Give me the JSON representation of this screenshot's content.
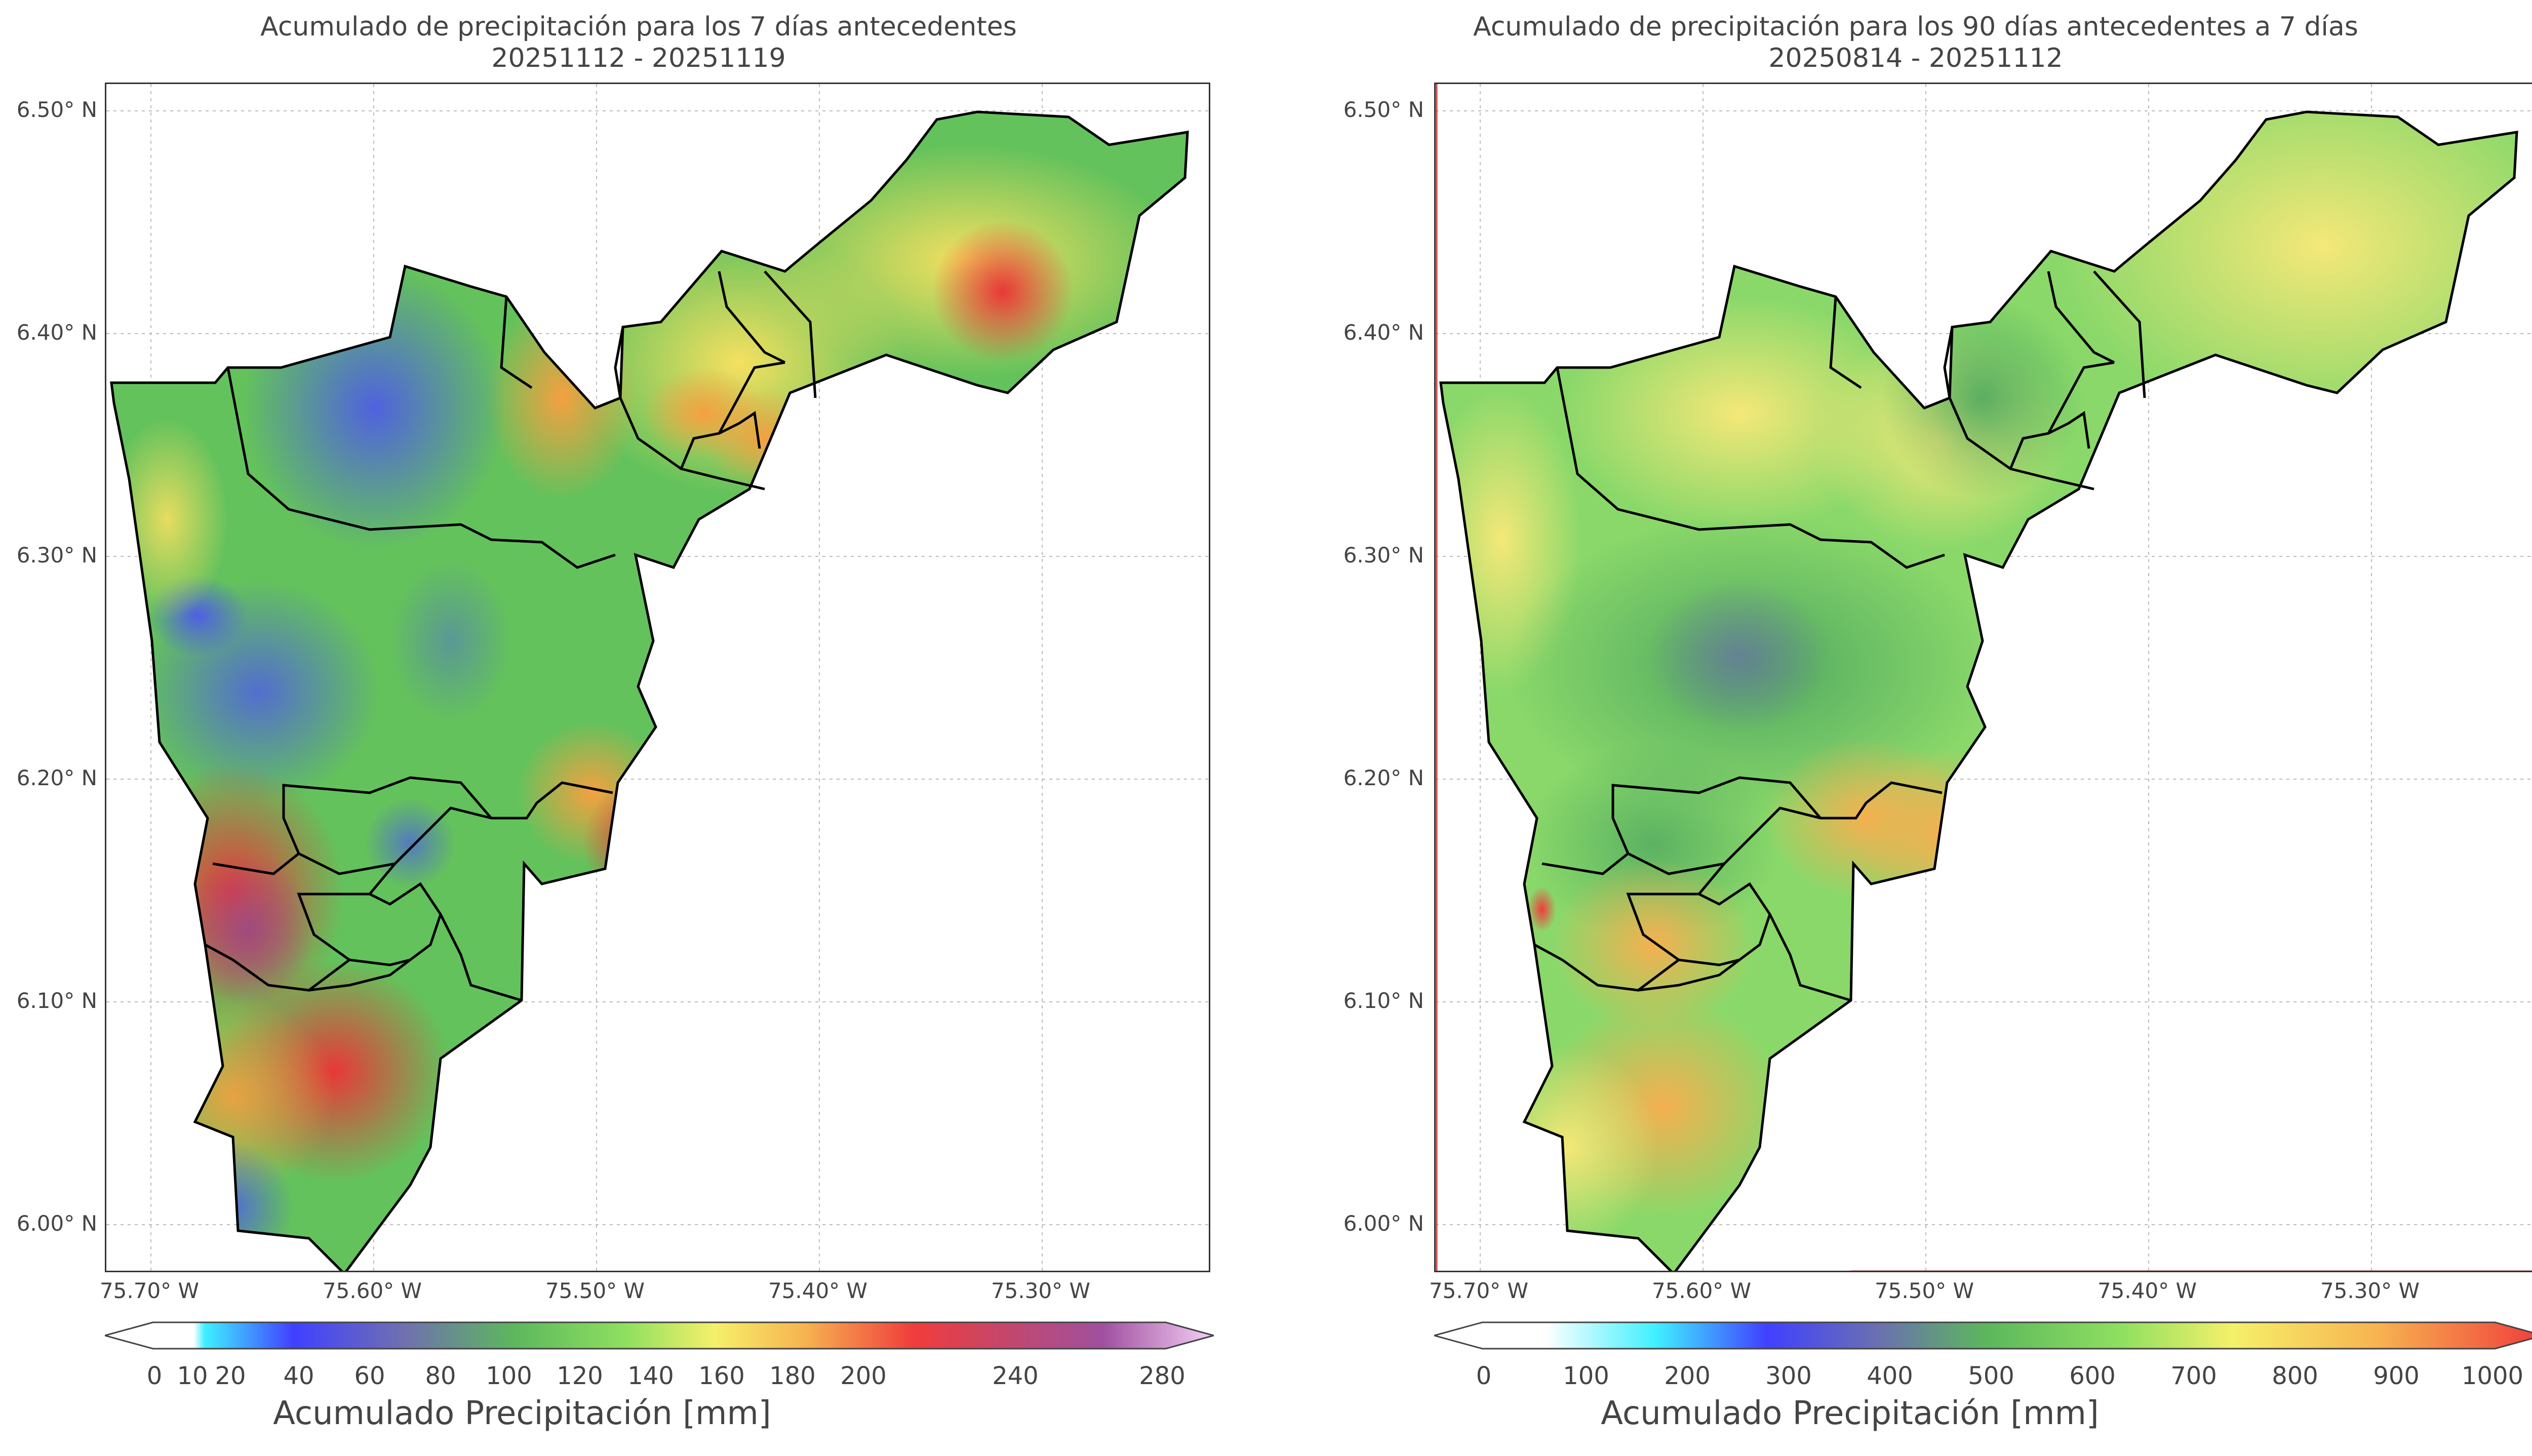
{
  "maps": [
    {
      "title": "Acumulado de precipitación para los 7 días antecedentes",
      "subtitle": "20251112 - 20251119",
      "colorbar_label": "Acumulado Precipitación [mm]",
      "colorbar_ticks": [
        "0",
        "10",
        "20",
        "40",
        "60",
        "80",
        "100",
        "120",
        "140",
        "160",
        "180",
        "200",
        "240",
        "280"
      ],
      "colorbar_stops": [
        0,
        10,
        20,
        40,
        60,
        80,
        100,
        120,
        140,
        160,
        180,
        200,
        240,
        280
      ],
      "colorbar_range": [
        0,
        280
      ]
    },
    {
      "title": "Acumulado de precipitación para los 90 días antecedentes a 7 días",
      "subtitle": "20250814 - 20251112",
      "colorbar_label": "Acumulado Precipitación [mm]",
      "colorbar_ticks": [
        "0",
        "100",
        "200",
        "300",
        "400",
        "500",
        "600",
        "700",
        "800",
        "900",
        "1000"
      ],
      "colorbar_stops": [
        0,
        100,
        200,
        300,
        400,
        500,
        600,
        700,
        800,
        900,
        1000
      ],
      "colorbar_range": [
        0,
        1000
      ]
    }
  ],
  "lat_ticks": [
    "6.50° N",
    "6.40° N",
    "6.30° N",
    "6.20° N",
    "6.10° N",
    "6.00° N"
  ],
  "lon_ticks": [
    "75.70° W",
    "75.60° W",
    "75.50° W",
    "75.40° W",
    "75.30° W"
  ],
  "colors": {
    "cyan": "#3ff0ff",
    "blue": "#4040ff",
    "slate": "#7070b0",
    "green": "#5cb85c",
    "lightgreen": "#8fe060",
    "yellow": "#f5f06a",
    "orange": "#f7b450",
    "red": "#f03c3c",
    "purple": "#a050a0",
    "pink": "#f5d0f5"
  }
}
